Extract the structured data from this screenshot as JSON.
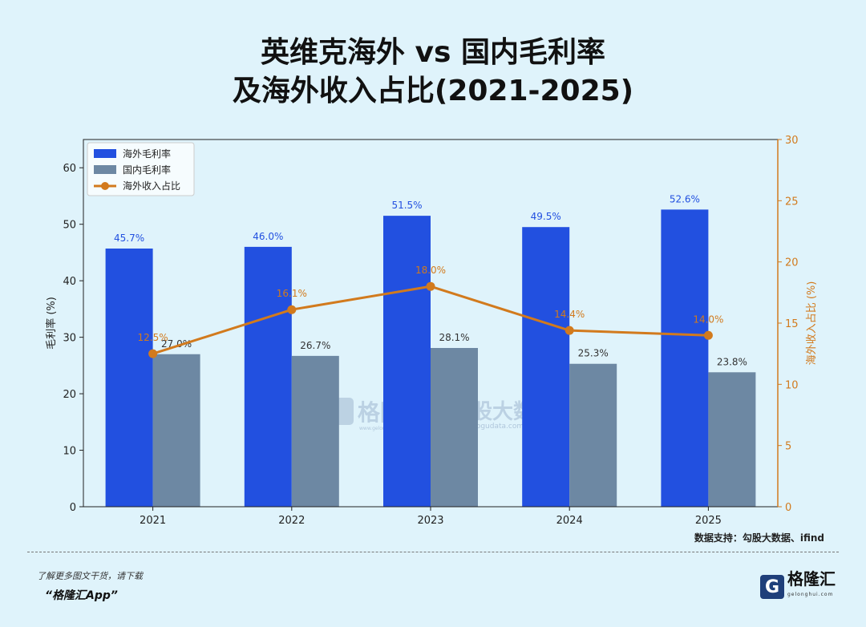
{
  "header": {
    "title_line1": "英维克海外 vs 国内毛利率",
    "title_line2": "及海外收入占比(2021-2025)"
  },
  "chart_data": {
    "type": "bar",
    "categories": [
      "2021",
      "2022",
      "2023",
      "2024",
      "2025"
    ],
    "series": [
      {
        "name": "海外毛利率",
        "kind": "bar",
        "axis": "left",
        "color": "#2250e0",
        "values": [
          45.7,
          46.0,
          51.5,
          49.5,
          52.6
        ],
        "labels": [
          "45.7%",
          "46.0%",
          "51.5%",
          "49.5%",
          "52.6%"
        ]
      },
      {
        "name": "国内毛利率",
        "kind": "bar",
        "axis": "left",
        "color": "#6d88a3",
        "values": [
          27.0,
          26.7,
          28.1,
          25.3,
          23.8
        ],
        "labels": [
          "27.0%",
          "26.7%",
          "28.1%",
          "25.3%",
          "23.8%"
        ]
      },
      {
        "name": "海外收入占比",
        "kind": "line",
        "axis": "right",
        "color": "#d27a1d",
        "values": [
          12.5,
          16.1,
          18.0,
          14.4,
          14.0
        ],
        "labels": [
          "12.5%",
          "16.1%",
          "18.0%",
          "14.4%",
          "14.0%"
        ]
      }
    ],
    "ylabel": "毛利率 (%)",
    "ylabel_right": "海外收入占比 (%)",
    "ylim": [
      0,
      65
    ],
    "yticks": [
      0,
      10,
      20,
      30,
      40,
      50,
      60
    ],
    "ylim_right": [
      0,
      30
    ],
    "yticks_right": [
      0,
      5,
      10,
      15,
      20,
      25,
      30
    ],
    "legend_position": "top-left",
    "grid": false
  },
  "watermark": {
    "left_brand": "格隆汇",
    "left_sub": "www.gelonghui.com",
    "right_brand": "勾股大数据",
    "right_sub": "www.gogudata.com"
  },
  "source": "数据支持：勾股大数据、ifind",
  "footer": {
    "small_text": "了解更多图文干货，请下载",
    "app_text": "“格隆汇App”",
    "logo_letter": "G",
    "logo_name": "格隆汇",
    "logo_sub": "gelonghui.com"
  },
  "colors": {
    "background": "#dff3fb",
    "overseas_bar": "#2250e0",
    "domestic_bar": "#6d88a3",
    "line": "#d27a1d"
  }
}
